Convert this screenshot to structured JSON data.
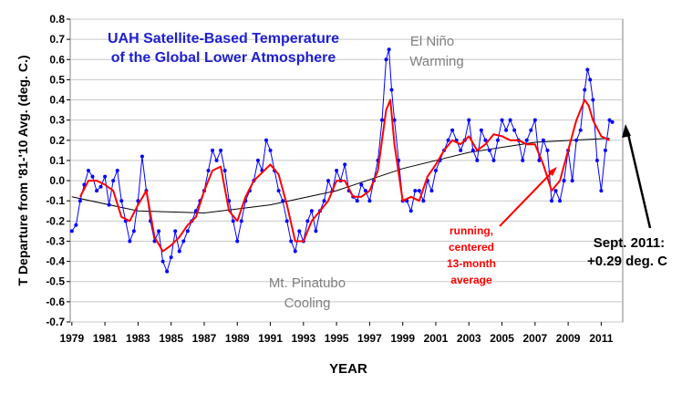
{
  "chart_data": {
    "type": "line",
    "title": [
      "UAH Satellite-Based Temperature",
      "of the Global Lower Atmosphere"
    ],
    "xlabel": "YEAR",
    "ylabel": "T Departure from '81-'10 Avg. (deg. C.)",
    "xlim": [
      1978.9,
      2012.3
    ],
    "ylim": [
      -0.7,
      0.8
    ],
    "x_ticks": [
      "1979",
      "1981",
      "1983",
      "1985",
      "1987",
      "1989",
      "1991",
      "1993",
      "1995",
      "1997",
      "1999",
      "2001",
      "2003",
      "2005",
      "2007",
      "2009",
      "2011"
    ],
    "y_ticks": [
      "0.8",
      "0.7",
      "0.6",
      "0.5",
      "0.4",
      "0.3",
      "0.2",
      "0.1",
      "0.0",
      "-0.1",
      "-0.2",
      "-0.3",
      "-0.4",
      "-0.5",
      "-0.6",
      "-0.7"
    ],
    "grid": "horizontal",
    "series": [
      {
        "name": "monthly",
        "color": "#0000ff",
        "x": [
          1979.0,
          1979.25,
          1979.5,
          1979.75,
          1980.0,
          1980.25,
          1980.5,
          1980.75,
          1981.0,
          1981.25,
          1981.5,
          1981.75,
          1982.0,
          1982.25,
          1982.5,
          1982.75,
          1983.0,
          1983.25,
          1983.5,
          1983.75,
          1984.0,
          1984.25,
          1984.5,
          1984.75,
          1985.0,
          1985.25,
          1985.5,
          1985.75,
          1986.0,
          1986.25,
          1986.5,
          1986.75,
          1987.0,
          1987.25,
          1987.5,
          1987.75,
          1988.0,
          1988.25,
          1988.5,
          1988.75,
          1989.0,
          1989.25,
          1989.5,
          1989.75,
          1990.0,
          1990.25,
          1990.5,
          1990.75,
          1991.0,
          1991.25,
          1991.5,
          1991.75,
          1992.0,
          1992.25,
          1992.5,
          1992.75,
          1993.0,
          1993.25,
          1993.5,
          1993.75,
          1994.0,
          1994.25,
          1994.5,
          1994.75,
          1995.0,
          1995.25,
          1995.5,
          1995.75,
          1996.0,
          1996.25,
          1996.5,
          1996.75,
          1997.0,
          1997.25,
          1997.5,
          1997.75,
          1998.0,
          1998.17,
          1998.33,
          1998.5,
          1998.75,
          1999.0,
          1999.25,
          1999.5,
          1999.75,
          2000.0,
          2000.25,
          2000.5,
          2000.75,
          2001.0,
          2001.25,
          2001.5,
          2001.75,
          2002.0,
          2002.25,
          2002.5,
          2002.75,
          2003.0,
          2003.25,
          2003.5,
          2003.75,
          2004.0,
          2004.25,
          2004.5,
          2004.75,
          2005.0,
          2005.25,
          2005.5,
          2005.75,
          2006.0,
          2006.25,
          2006.5,
          2006.75,
          2007.0,
          2007.25,
          2007.5,
          2007.75,
          2008.0,
          2008.25,
          2008.5,
          2008.75,
          2009.0,
          2009.25,
          2009.5,
          2009.75,
          2010.0,
          2010.17,
          2010.33,
          2010.5,
          2010.75,
          2011.0,
          2011.25,
          2011.5,
          2011.67
        ],
        "values": [
          -0.25,
          -0.22,
          -0.1,
          -0.02,
          0.05,
          0.02,
          -0.05,
          -0.03,
          0.02,
          -0.12,
          0.0,
          0.05,
          -0.1,
          -0.2,
          -0.3,
          -0.25,
          -0.1,
          0.12,
          -0.05,
          -0.2,
          -0.3,
          -0.25,
          -0.4,
          -0.45,
          -0.38,
          -0.25,
          -0.35,
          -0.3,
          -0.25,
          -0.2,
          -0.15,
          -0.1,
          -0.05,
          0.05,
          0.15,
          0.1,
          0.15,
          0.05,
          -0.1,
          -0.2,
          -0.3,
          -0.2,
          -0.1,
          -0.05,
          0.0,
          0.1,
          0.05,
          0.2,
          0.15,
          0.05,
          -0.05,
          -0.1,
          -0.2,
          -0.3,
          -0.35,
          -0.25,
          -0.3,
          -0.2,
          -0.15,
          -0.25,
          -0.15,
          -0.1,
          0.0,
          -0.05,
          0.05,
          0.0,
          0.08,
          -0.05,
          -0.08,
          -0.1,
          -0.02,
          -0.05,
          -0.1,
          0.0,
          0.1,
          0.3,
          0.6,
          0.65,
          0.45,
          0.3,
          0.1,
          -0.1,
          -0.1,
          -0.15,
          -0.05,
          -0.05,
          -0.1,
          0.0,
          -0.05,
          0.05,
          0.1,
          0.15,
          0.2,
          0.25,
          0.2,
          0.15,
          0.2,
          0.3,
          0.15,
          0.1,
          0.25,
          0.2,
          0.15,
          0.1,
          0.2,
          0.3,
          0.25,
          0.3,
          0.25,
          0.2,
          0.1,
          0.2,
          0.25,
          0.3,
          0.1,
          0.2,
          0.15,
          -0.1,
          -0.05,
          -0.1,
          0.0,
          0.15,
          0.0,
          0.2,
          0.25,
          0.45,
          0.55,
          0.5,
          0.4,
          0.1,
          -0.05,
          0.15,
          0.3,
          0.29
        ]
      },
      {
        "name": "running, centered 13-month average",
        "color": "#ff0000",
        "x": [
          1979.5,
          1980.0,
          1980.5,
          1981.0,
          1981.5,
          1982.0,
          1982.5,
          1983.0,
          1983.5,
          1984.0,
          1984.5,
          1985.0,
          1985.5,
          1986.0,
          1986.5,
          1987.0,
          1987.5,
          1988.0,
          1988.5,
          1989.0,
          1989.5,
          1990.0,
          1990.5,
          1991.0,
          1991.5,
          1992.0,
          1992.5,
          1993.0,
          1993.5,
          1994.0,
          1994.5,
          1995.0,
          1995.5,
          1996.0,
          1996.5,
          1997.0,
          1997.5,
          1998.0,
          1998.25,
          1998.5,
          1999.0,
          1999.5,
          2000.0,
          2000.5,
          2001.0,
          2001.5,
          2002.0,
          2002.5,
          2003.0,
          2003.5,
          2004.0,
          2004.5,
          2005.0,
          2005.5,
          2006.0,
          2006.5,
          2007.0,
          2007.5,
          2008.0,
          2008.5,
          2009.0,
          2009.5,
          2010.0,
          2010.25,
          2010.5,
          2011.0,
          2011.5
        ],
        "values": [
          -0.08,
          0.0,
          0.0,
          -0.02,
          -0.05,
          -0.18,
          -0.2,
          -0.12,
          -0.05,
          -0.28,
          -0.35,
          -0.32,
          -0.28,
          -0.22,
          -0.18,
          -0.05,
          0.05,
          0.07,
          -0.15,
          -0.2,
          -0.08,
          0.0,
          0.04,
          0.08,
          0.03,
          -0.12,
          -0.3,
          -0.3,
          -0.2,
          -0.15,
          -0.1,
          0.0,
          0.0,
          -0.08,
          -0.08,
          -0.05,
          0.05,
          0.35,
          0.4,
          0.18,
          -0.1,
          -0.08,
          -0.1,
          0.02,
          0.08,
          0.15,
          0.2,
          0.18,
          0.22,
          0.15,
          0.18,
          0.23,
          0.22,
          0.2,
          0.2,
          0.18,
          0.18,
          0.08,
          -0.05,
          0.0,
          0.15,
          0.3,
          0.4,
          0.37,
          0.3,
          0.22,
          0.2
        ]
      },
      {
        "name": "trend",
        "color": "#000000",
        "x": [
          1979.0,
          1983.0,
          1987.0,
          1991.0,
          1995.0,
          1999.0,
          2003.0,
          2007.0,
          2011.5
        ],
        "values": [
          -0.08,
          -0.15,
          -0.16,
          -0.12,
          -0.05,
          0.06,
          0.14,
          0.19,
          0.21
        ]
      }
    ],
    "annotations": {
      "el_nino": [
        "El Niño",
        "Warming"
      ],
      "pinatubo": [
        "Mt. Pinatubo",
        "Cooling"
      ],
      "running_avg": [
        "running,",
        "centered",
        "13-month",
        "average"
      ],
      "latest": [
        "Sept. 2011:",
        "+0.29 deg. C"
      ]
    }
  }
}
